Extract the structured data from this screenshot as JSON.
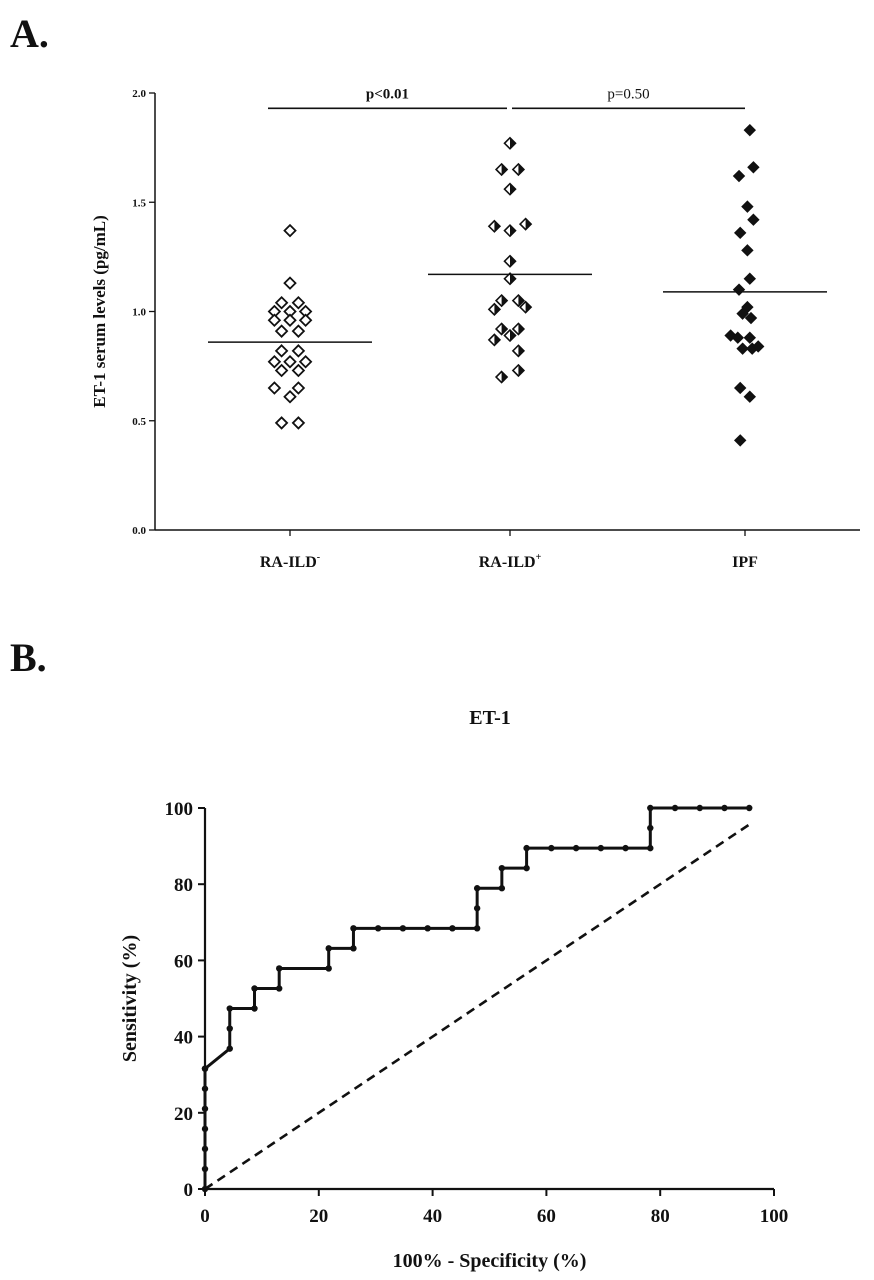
{
  "panels": {
    "a_letter": "A.",
    "b_letter": "B."
  },
  "chart_data": [
    {
      "type": "scatter",
      "title": "",
      "xlabel": "",
      "ylabel": "ET-1 serum levels (pg/mL)",
      "ylim": [
        0,
        2.0
      ],
      "yticks": [
        "0.0",
        "0.5",
        "1.0",
        "1.5",
        "2.0"
      ],
      "categories": [
        {
          "name": "RA-ILD",
          "sup": "-"
        },
        {
          "name": "RA-ILD",
          "sup": "+"
        },
        {
          "name": "IPF",
          "sup": ""
        }
      ],
      "grid": false,
      "series": [
        {
          "category_index": 0,
          "marker": "open-diamond",
          "mean": 0.86,
          "points": [
            {
              "offset": 0,
              "y": 1.37
            },
            {
              "offset": 0,
              "y": 1.13
            },
            {
              "offset": -0.7,
              "y": 1.04
            },
            {
              "offset": 0.7,
              "y": 1.04
            },
            {
              "offset": -1.3,
              "y": 1.0
            },
            {
              "offset": 0,
              "y": 1.0
            },
            {
              "offset": 1.3,
              "y": 1.0
            },
            {
              "offset": -1.3,
              "y": 0.96
            },
            {
              "offset": 0,
              "y": 0.96
            },
            {
              "offset": 1.3,
              "y": 0.96
            },
            {
              "offset": -0.7,
              "y": 0.91
            },
            {
              "offset": 0.7,
              "y": 0.91
            },
            {
              "offset": -0.7,
              "y": 0.82
            },
            {
              "offset": 0.7,
              "y": 0.82
            },
            {
              "offset": -1.3,
              "y": 0.77
            },
            {
              "offset": 0,
              "y": 0.77
            },
            {
              "offset": 1.3,
              "y": 0.77
            },
            {
              "offset": -0.7,
              "y": 0.73
            },
            {
              "offset": 0.7,
              "y": 0.73
            },
            {
              "offset": -1.3,
              "y": 0.65
            },
            {
              "offset": 0.7,
              "y": 0.65
            },
            {
              "offset": 0,
              "y": 0.61
            },
            {
              "offset": -0.7,
              "y": 0.49
            },
            {
              "offset": 0.7,
              "y": 0.49
            }
          ]
        },
        {
          "category_index": 1,
          "marker": "half-diamond",
          "mean": 1.17,
          "points": [
            {
              "offset": 0,
              "y": 1.77
            },
            {
              "offset": -0.7,
              "y": 1.65
            },
            {
              "offset": 0.7,
              "y": 1.65
            },
            {
              "offset": 0,
              "y": 1.56
            },
            {
              "offset": -1.3,
              "y": 1.39
            },
            {
              "offset": 0,
              "y": 1.37
            },
            {
              "offset": 1.3,
              "y": 1.4
            },
            {
              "offset": 0,
              "y": 1.23
            },
            {
              "offset": 0,
              "y": 1.15
            },
            {
              "offset": -0.7,
              "y": 1.05
            },
            {
              "offset": 0.7,
              "y": 1.05
            },
            {
              "offset": -1.3,
              "y": 1.01
            },
            {
              "offset": 1.3,
              "y": 1.02
            },
            {
              "offset": -0.7,
              "y": 0.92
            },
            {
              "offset": 0.7,
              "y": 0.92
            },
            {
              "offset": -1.3,
              "y": 0.87
            },
            {
              "offset": 0,
              "y": 0.89
            },
            {
              "offset": 0.7,
              "y": 0.82
            },
            {
              "offset": 0.7,
              "y": 0.73
            },
            {
              "offset": -0.7,
              "y": 0.7
            }
          ]
        },
        {
          "category_index": 2,
          "marker": "filled-diamond",
          "mean": 1.09,
          "points": [
            {
              "offset": 0.4,
              "y": 1.83
            },
            {
              "offset": 0.7,
              "y": 1.66
            },
            {
              "offset": -0.5,
              "y": 1.62
            },
            {
              "offset": 0.2,
              "y": 1.48
            },
            {
              "offset": 0.7,
              "y": 1.42
            },
            {
              "offset": -0.4,
              "y": 1.36
            },
            {
              "offset": 0.2,
              "y": 1.28
            },
            {
              "offset": 0.4,
              "y": 1.15
            },
            {
              "offset": -0.5,
              "y": 1.1
            },
            {
              "offset": 0.2,
              "y": 1.02
            },
            {
              "offset": 0.5,
              "y": 0.97
            },
            {
              "offset": -0.2,
              "y": 0.99
            },
            {
              "offset": -1.2,
              "y": 0.89
            },
            {
              "offset": -0.6,
              "y": 0.88
            },
            {
              "offset": 0.4,
              "y": 0.88
            },
            {
              "offset": -0.2,
              "y": 0.83
            },
            {
              "offset": 0.6,
              "y": 0.83
            },
            {
              "offset": 1.1,
              "y": 0.84
            },
            {
              "offset": -0.4,
              "y": 0.65
            },
            {
              "offset": 0.4,
              "y": 0.61
            },
            {
              "offset": -0.4,
              "y": 0.41
            }
          ]
        }
      ],
      "annotations": [
        {
          "label": "p<0.01",
          "from": 0,
          "to": 1,
          "y": 1.93
        },
        {
          "label": "p=0.50",
          "from": 1,
          "to": 2,
          "y": 1.93
        }
      ]
    },
    {
      "type": "line",
      "title": "ET-1",
      "xlabel": "100% - Specificity (%)",
      "ylabel": "Sensitivity (%)",
      "xlim": [
        0,
        100
      ],
      "ylim": [
        0,
        100
      ],
      "xticks": [
        0,
        20,
        40,
        60,
        80,
        100
      ],
      "yticks": [
        0,
        20,
        40,
        60,
        80,
        100
      ],
      "grid": false,
      "series": [
        {
          "style": "solid-markers",
          "x": [
            0,
            0,
            0,
            0,
            0,
            0,
            0,
            0,
            4.35,
            4.35,
            4.35,
            8.7,
            8.7,
            13.04,
            13.04,
            21.74,
            21.74,
            26.09,
            26.09,
            30.43,
            34.78,
            39.13,
            43.48,
            47.83,
            47.83,
            47.83,
            52.17,
            52.17,
            56.52,
            56.52,
            60.87,
            65.22,
            69.57,
            73.91,
            78.26,
            78.26,
            78.26,
            82.61,
            86.96,
            91.3,
            95.65
          ],
          "y": [
            0,
            5.26,
            10.53,
            15.79,
            21.05,
            26.32,
            31.58,
            31.58,
            36.84,
            42.11,
            47.37,
            47.37,
            52.63,
            52.63,
            57.89,
            57.89,
            63.16,
            63.16,
            68.42,
            68.42,
            68.42,
            68.42,
            68.42,
            68.42,
            73.68,
            78.95,
            78.95,
            84.21,
            84.21,
            89.47,
            89.47,
            89.47,
            89.47,
            89.47,
            89.47,
            94.74,
            100,
            100,
            100,
            100,
            100
          ]
        },
        {
          "style": "dashed",
          "x": [
            0,
            95.65
          ],
          "y": [
            0,
            95.65
          ]
        }
      ]
    }
  ]
}
